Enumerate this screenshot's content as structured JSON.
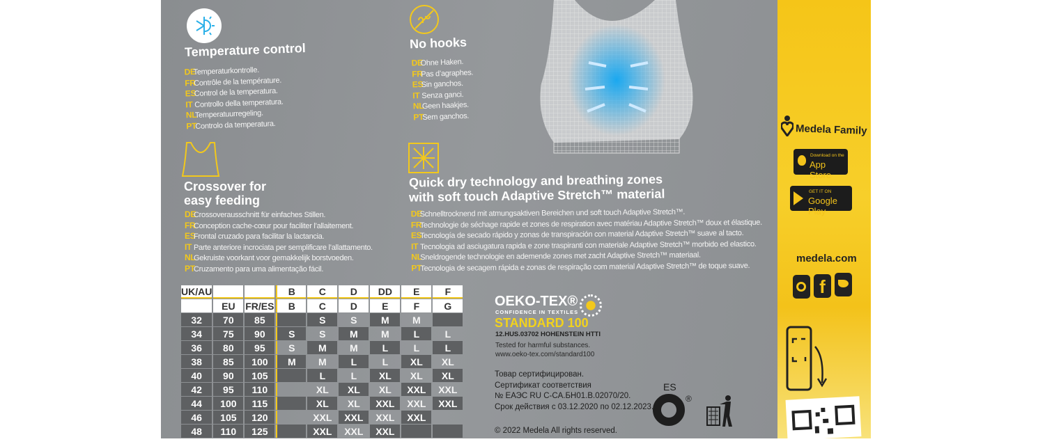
{
  "features": [
    {
      "title": "Temperature control",
      "icon": "snowflake-sun-icon",
      "langs": [
        [
          "DE",
          "Temperaturkontrolle."
        ],
        [
          "FR",
          "Contrôle de la température."
        ],
        [
          "ES",
          "Control de la temperatura."
        ],
        [
          "IT",
          "Controllo della temperatura."
        ],
        [
          "NL",
          "Temperatuurregeling."
        ],
        [
          "PT",
          "Controlo da temperatura."
        ]
      ]
    },
    {
      "title": "No hooks",
      "icon": "no-hooks-icon",
      "langs": [
        [
          "DE",
          "Ohne Haken."
        ],
        [
          "FR",
          "Pas d’agraphes."
        ],
        [
          "ES",
          "Sin ganchos."
        ],
        [
          "IT",
          "Senza ganci."
        ],
        [
          "NL",
          "Geen haakjes."
        ],
        [
          "PT",
          "Sem ganchos."
        ]
      ]
    },
    {
      "title_line1": "Crossover for",
      "title_line2": "easy feeding",
      "icon": "crossover-bra-icon",
      "langs": [
        [
          "DE",
          "Crossoverausschnitt für einfaches Stillen."
        ],
        [
          "FR",
          "Conception cache-cœur pour faciliter l’allaitement."
        ],
        [
          "ES",
          "Frontal cruzado para facilitar la lactancia."
        ],
        [
          "IT",
          "Parte anteriore incrociata per semplificare l’allattamento."
        ],
        [
          "NL",
          "Gekruiste voorkant voor gemakkelijk borstvoeden."
        ],
        [
          "PT",
          "Cruzamento para uma alimentação fácil."
        ]
      ]
    },
    {
      "title_line1": "Quick dry technology and breathing zones",
      "title_line2": "with soft touch Adaptive Stretch™ material",
      "icon": "quick-dry-icon",
      "langs": [
        [
          "DE",
          "Schnelltrocknend mit atmungsaktiven Bereichen und soft touch Adaptive Stretch™."
        ],
        [
          "FR",
          "Technologie de séchage rapide et zones de respiration avec matériau Adaptive Stretch™ doux et élastique."
        ],
        [
          "ES",
          "Tecnología de secado rápido y zonas de transpiración con material Adaptive Stretch™ suave al tacto."
        ],
        [
          "IT",
          "Tecnologia ad asciugatura rapida e zone traspiranti con materiale Adaptive Stretch™ morbido ed elastico."
        ],
        [
          "NL",
          "Sneldrogende technologie en ademende zones met zacht Adaptive Stretch™ materiaal."
        ],
        [
          "PT",
          "Tecnologia de secagem rápida e zonas de respiração com material Adaptive Stretch™ de toque suave."
        ]
      ]
    }
  ],
  "size_table": {
    "header1": [
      "UK/AU",
      "",
      "",
      "B",
      "C",
      "D",
      "DD",
      "E",
      "F"
    ],
    "header2": [
      "",
      "EU",
      "FR/ES",
      "B",
      "C",
      "D",
      "E",
      "F",
      "G"
    ],
    "rows": [
      [
        "32",
        "70",
        "85",
        "",
        "S",
        "S",
        "M",
        "M",
        ""
      ],
      [
        "34",
        "75",
        "90",
        "S",
        "S",
        "M",
        "M",
        "L",
        "L"
      ],
      [
        "36",
        "80",
        "95",
        "S",
        "M",
        "M",
        "L",
        "L",
        "L"
      ],
      [
        "38",
        "85",
        "100",
        "M",
        "M",
        "L",
        "L",
        "XL",
        "XL"
      ],
      [
        "40",
        "90",
        "105",
        "",
        "L",
        "L",
        "XL",
        "XL",
        "XL"
      ],
      [
        "42",
        "95",
        "110",
        "",
        "XL",
        "XL",
        "XL",
        "XXL",
        "XXL"
      ],
      [
        "44",
        "100",
        "115",
        "",
        "XL",
        "XL",
        "XXL",
        "XXL",
        "XXL"
      ],
      [
        "46",
        "105",
        "120",
        "",
        "XXL",
        "XXL",
        "XXL",
        "XXL",
        ""
      ],
      [
        "48",
        "110",
        "125",
        "",
        "XXL",
        "XXL",
        "XXL",
        "",
        ""
      ]
    ]
  },
  "oekotex": {
    "logo": "OEKO-TEX®",
    "tagline": "CONFIDENCE IN TEXTILES",
    "standard": "STANDARD 100",
    "cert": "12.HUS.03702 HOHENSTEIN HTTI",
    "tested": "Tested for harmful substances.",
    "url": "www.oeko-tex.com/standard100"
  },
  "russian": [
    "Товар сертифицирован.",
    "Сертификат соответствия",
    "№ ЕАЭС RU C-CA.БH01.B.02070/20.",
    "Срок действия с 03.12.2020 по 02.12.2023."
  ],
  "copyright": "© 2022 Medela All rights reserved.",
  "recycling": {
    "country": "ES",
    "mark": "®"
  },
  "sidebar": {
    "brand": "Medela Family",
    "appstore_small": "Download on the",
    "appstore_big": "App Store",
    "gplay_small": "GET IT ON",
    "gplay_big": "Google Play",
    "website": "medela.com",
    "social": [
      "instagram-icon",
      "facebook-icon",
      "twitter-icon"
    ]
  },
  "colors": {
    "panel": "#8f9295",
    "accent_yellow": "#f2c81c",
    "strip_yellow": "#f5c518",
    "dark_cell": "#5e6062"
  }
}
